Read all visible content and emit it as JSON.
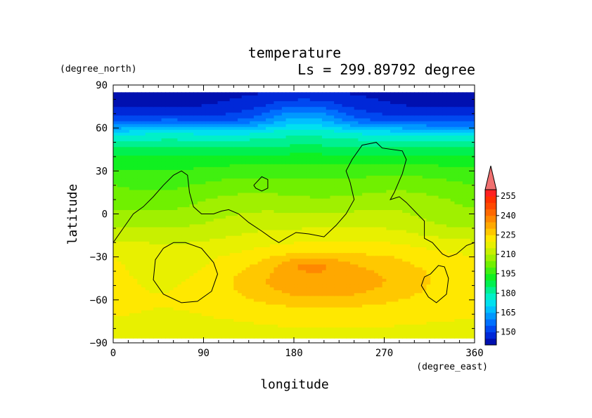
{
  "chart_data": {
    "type": "heatmap",
    "title": "temperature",
    "subtitle": "Ls = 299.89792 degree",
    "xlabel": "longitude",
    "ylabel": "latitude",
    "x_units": "(degree_east)",
    "y_units": "(degree_north)",
    "xlim": [
      0,
      360
    ],
    "ylim": [
      -90,
      90
    ],
    "x_ticks": [
      "0",
      "90",
      "180",
      "270",
      "360"
    ],
    "y_ticks": [
      "90",
      "60",
      "30",
      "0",
      "−30",
      "−60",
      "−90"
    ],
    "x_tick_values": [
      0,
      90,
      180,
      270,
      360
    ],
    "y_tick_values": [
      90,
      60,
      30,
      0,
      -30,
      -60,
      -90
    ],
    "data_lat_range": [
      -87,
      85
    ],
    "colorbar": {
      "labels": [
        "255",
        "240",
        "225",
        "210",
        "195",
        "180",
        "165",
        "150"
      ],
      "label_values": [
        255,
        240,
        225,
        210,
        195,
        180,
        165,
        150
      ],
      "levels": [
        140,
        145,
        150,
        155,
        160,
        165,
        170,
        175,
        180,
        185,
        190,
        195,
        200,
        205,
        210,
        215,
        220,
        225,
        230,
        235,
        240,
        245,
        250,
        255,
        260
      ],
      "colors": [
        "#0010b0",
        "#0028d8",
        "#0048f0",
        "#0070ff",
        "#0098ff",
        "#00c0ff",
        "#00e0f0",
        "#00f0c8",
        "#00f090",
        "#00f050",
        "#10f020",
        "#40f010",
        "#70f000",
        "#a0f000",
        "#c8f000",
        "#e8f000",
        "#ffe800",
        "#ffc800",
        "#ffa800",
        "#ff8800",
        "#ff6800",
        "#ff4800",
        "#ff3000",
        "#ff2020"
      ],
      "extend_max_color": "#f07070"
    },
    "zonal_profile": [
      {
        "lat": 90,
        "t": 143
      },
      {
        "lat": 75,
        "t": 145
      },
      {
        "lat": 67,
        "t": 151
      },
      {
        "lat": 62,
        "t": 160
      },
      {
        "lat": 57,
        "t": 172
      },
      {
        "lat": 50,
        "t": 182
      },
      {
        "lat": 40,
        "t": 192
      },
      {
        "lat": 30,
        "t": 199
      },
      {
        "lat": 20,
        "t": 205
      },
      {
        "lat": 10,
        "t": 210
      },
      {
        "lat": 0,
        "t": 213
      },
      {
        "lat": -10,
        "t": 216
      },
      {
        "lat": -20,
        "t": 220
      },
      {
        "lat": -30,
        "t": 223
      },
      {
        "lat": -45,
        "t": 223
      },
      {
        "lat": -60,
        "t": 222
      },
      {
        "lat": -75,
        "t": 220
      },
      {
        "lat": -90,
        "t": 219
      }
    ],
    "anomalies": [
      {
        "lon": 205,
        "lat": -47,
        "a": 12,
        "slon": 65,
        "slat": 12
      },
      {
        "lon": 195,
        "lat": -35,
        "a": 6,
        "slon": 22,
        "slat": 4
      },
      {
        "lon": 190,
        "lat": 68,
        "a": 14,
        "slon": 35,
        "slat": 9
      },
      {
        "lon": 55,
        "lat": 60,
        "a": 5,
        "slon": 20,
        "slat": 5
      },
      {
        "lon": 40,
        "lat": 10,
        "a": -7,
        "slon": 55,
        "slat": 18
      },
      {
        "lon": 210,
        "lat": 12,
        "a": -4,
        "slon": 45,
        "slat": 12
      },
      {
        "lon": 70,
        "lat": -35,
        "a": -5,
        "slon": 60,
        "slat": 20
      },
      {
        "lon": 330,
        "lat": -5,
        "a": -3,
        "slon": 30,
        "slat": 12
      }
    ],
    "contours": [
      [
        [
          0,
          -20
        ],
        [
          10,
          -10
        ],
        [
          20,
          0
        ],
        [
          30,
          5
        ],
        [
          40,
          12
        ],
        [
          50,
          20
        ],
        [
          60,
          27
        ],
        [
          68,
          30
        ],
        [
          74,
          27
        ],
        [
          76,
          15
        ],
        [
          80,
          5
        ],
        [
          88,
          0
        ],
        [
          100,
          0
        ],
        [
          108,
          2
        ],
        [
          115,
          3
        ],
        [
          125,
          0
        ],
        [
          135,
          -6
        ],
        [
          148,
          -12
        ],
        [
          158,
          -17
        ],
        [
          165,
          -20
        ],
        [
          172,
          -17
        ],
        [
          182,
          -13
        ],
        [
          195,
          -14
        ],
        [
          210,
          -16
        ],
        [
          222,
          -8
        ],
        [
          232,
          0
        ],
        [
          240,
          10
        ],
        [
          236,
          22
        ],
        [
          232,
          30
        ],
        [
          238,
          38
        ],
        [
          248,
          48
        ],
        [
          262,
          50
        ],
        [
          268,
          46
        ],
        [
          288,
          44
        ],
        [
          292,
          38
        ],
        [
          288,
          28
        ],
        [
          280,
          15
        ],
        [
          276,
          10
        ],
        [
          285,
          12
        ],
        [
          292,
          8
        ],
        [
          303,
          0
        ],
        [
          310,
          -5
        ],
        [
          310,
          -17
        ],
        [
          318,
          -20
        ],
        [
          328,
          -28
        ],
        [
          334,
          -30
        ],
        [
          342,
          -28
        ],
        [
          352,
          -22
        ],
        [
          360,
          -20
        ]
      ],
      [
        [
          140,
          20
        ],
        [
          148,
          26
        ],
        [
          154,
          24
        ],
        [
          154,
          18
        ],
        [
          148,
          16
        ],
        [
          142,
          18
        ],
        [
          140,
          20
        ]
      ],
      [
        [
          60,
          -20
        ],
        [
          72,
          -20
        ],
        [
          88,
          -24
        ],
        [
          100,
          -34
        ],
        [
          104,
          -42
        ],
        [
          98,
          -54
        ],
        [
          84,
          -61
        ],
        [
          68,
          -62
        ],
        [
          50,
          -56
        ],
        [
          40,
          -46
        ],
        [
          42,
          -32
        ],
        [
          50,
          -24
        ],
        [
          60,
          -20
        ]
      ],
      [
        [
          316,
          -42
        ],
        [
          324,
          -36
        ],
        [
          330,
          -37
        ],
        [
          334,
          -45
        ],
        [
          332,
          -56
        ],
        [
          322,
          -62
        ],
        [
          314,
          -58
        ],
        [
          307,
          -50
        ],
        [
          310,
          -44
        ],
        [
          316,
          -42
        ]
      ]
    ]
  }
}
